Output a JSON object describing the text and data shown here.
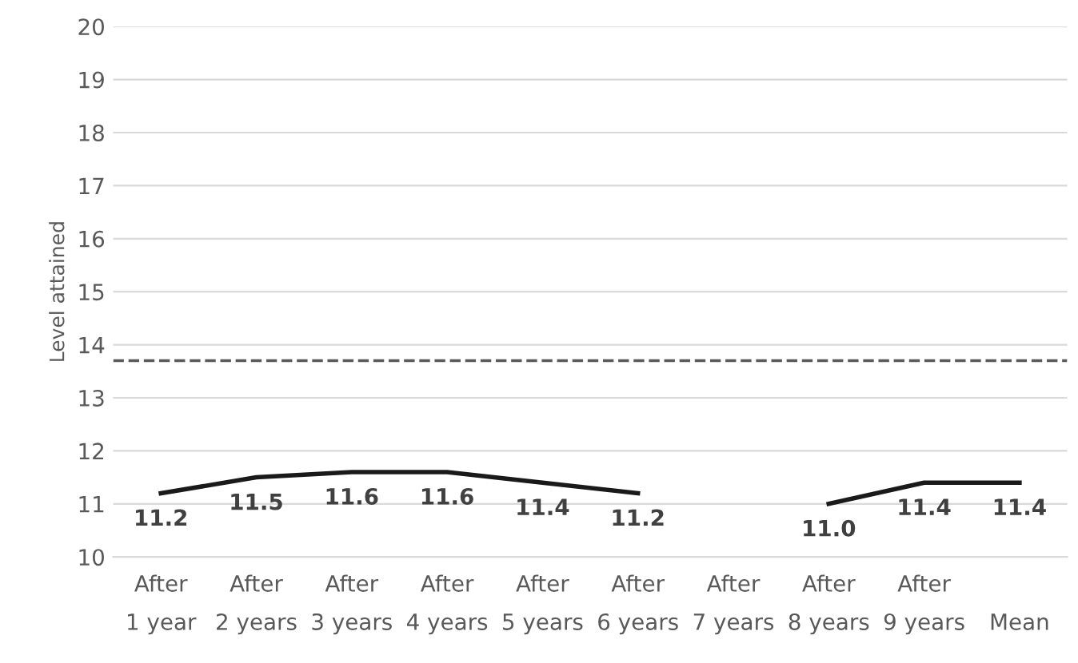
{
  "chart_data": {
    "type": "line",
    "ylabel": "Level attained",
    "categories": [
      "After\n1 year",
      "After\n2 years",
      "After\n3 years",
      "After\n4 years",
      "After\n5 years",
      "After\n6 years",
      "After\n7 years",
      "After\n8 years",
      "After\n9 years",
      "Mean"
    ],
    "series": [
      {
        "color": "#1a1a1a",
        "values": [
          11.2,
          11.5,
          11.6,
          11.6,
          11.4,
          11.2,
          null,
          11.0,
          11.4,
          11.4
        ]
      }
    ],
    "ylim": [
      10,
      20
    ],
    "yticks": [
      10,
      11,
      12,
      13,
      14,
      15,
      16,
      17,
      18,
      19,
      20
    ],
    "grid": "y",
    "value_labels": [
      "11.2",
      "11.5",
      "11.6",
      "11.6",
      "11.4",
      "11.2",
      null,
      "11.0",
      "11.4",
      "11.4"
    ],
    "marker": "none",
    "line_style": "solid",
    "ref_lines": [
      {
        "axis": "y",
        "value": 13.7,
        "color": "#595959",
        "line_style": "dashed"
      }
    ]
  }
}
